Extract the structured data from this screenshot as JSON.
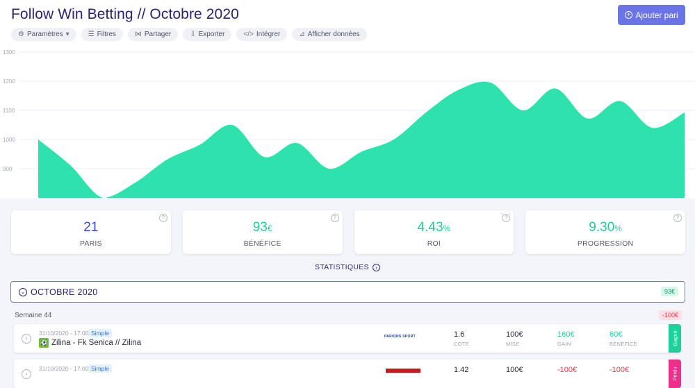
{
  "header": {
    "title": "Follow Win Betting // Octobre 2020",
    "add_bet_label": "Ajouter pari"
  },
  "toolbar": {
    "items": [
      {
        "label": "Paramètres",
        "icon": "settings-icon"
      },
      {
        "label": "Filtres",
        "icon": "filter-icon"
      },
      {
        "label": "Partager",
        "icon": "share-icon"
      },
      {
        "label": "Exporter",
        "icon": "export-icon"
      },
      {
        "label": "Intégrer",
        "icon": "code-icon"
      },
      {
        "label": "Afficher données",
        "icon": "data-icon"
      }
    ]
  },
  "chart_data": {
    "type": "area",
    "color": "#2de2ac",
    "ylim": [
      800,
      1300
    ],
    "yticks": [
      900,
      1000,
      1100,
      1200,
      1300
    ],
    "values": [
      1000,
      911,
      800,
      852,
      932,
      982,
      1050,
      940,
      988,
      900,
      958,
      1000,
      1093,
      1170,
      1195,
      1100,
      1175,
      1072,
      1132,
      1040,
      1093
    ],
    "grid": true
  },
  "stats": {
    "cards": [
      {
        "value": "21",
        "unit": "",
        "label": "PARIS",
        "color": "blue"
      },
      {
        "value": "93",
        "unit": "€",
        "label": "BÉNÉFICE",
        "color": "green"
      },
      {
        "value": "4.43",
        "unit": "%",
        "label": "ROI",
        "color": "green"
      },
      {
        "value": "9.30",
        "unit": "%",
        "label": "PROGRESSION",
        "color": "green"
      }
    ],
    "link_label": "STATISTIQUES"
  },
  "month": {
    "title": "OCTOBRE 2020",
    "total": "93€"
  },
  "week": {
    "label": "Semaine 44",
    "total": "-100€"
  },
  "bets": [
    {
      "date": "31/10/2020 - 17:00",
      "type": "Simple",
      "name": "Zilina - Fk Senica // Zilina",
      "bookie": "PARIONS SPORT",
      "cote": "1.6",
      "mise": "100€",
      "gain": "160€",
      "benefice": "60€",
      "status": "Gagné",
      "status_color": "#1fcf9c"
    },
    {
      "date": "31/10/2020 - 17:00",
      "type": "Simple",
      "name": "",
      "bookie": "",
      "cote": "1.42",
      "mise": "100€",
      "gain": "-100€",
      "benefice": "-100€",
      "status": "Perdu",
      "status_color": "#ec2f8b"
    }
  ],
  "columns": {
    "cote": "COTE",
    "mise": "MISE",
    "gain": "GAIN",
    "benefice": "BÉNÉFICE"
  }
}
